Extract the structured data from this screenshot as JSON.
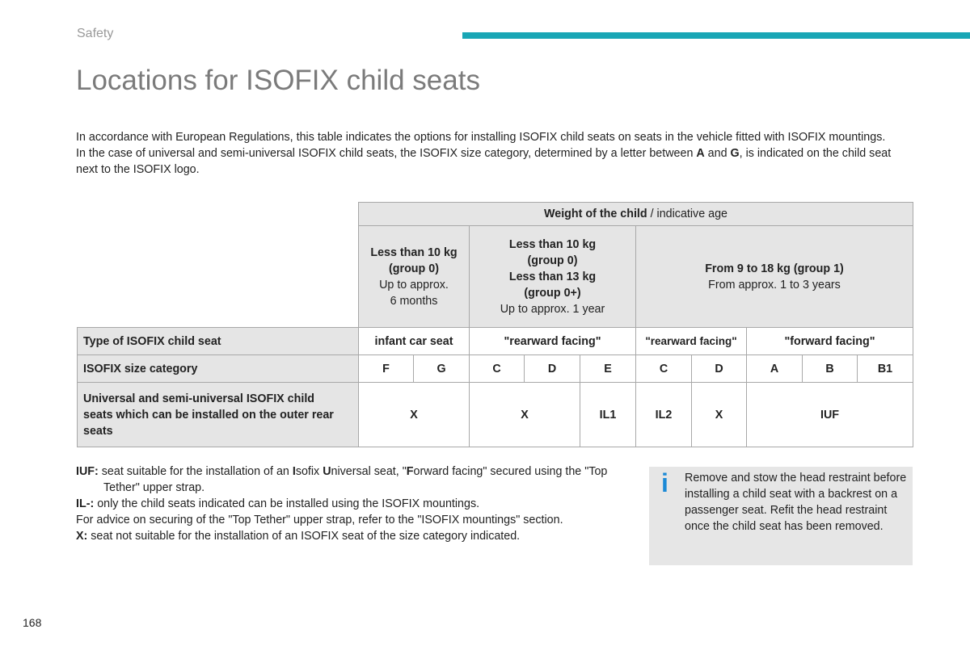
{
  "header": {
    "section": "Safety",
    "title": "Locations for ISOFIX child seats"
  },
  "intro": [
    [
      "In accordance with European Regulations, this table indicates the options for installing ISOFIX child seats on seats in the vehicle fitted with ISOFIX mountings."
    ],
    [
      "In the case of universal and semi-universal ISOFIX child seats, the ISOFIX size category, determined by a letter between ",
      "A",
      " and ",
      "G",
      ", is indicated on the child seat next to the ISOFIX logo."
    ]
  ],
  "table": {
    "weight_header": {
      "bold": "Weight of the child",
      "rest": " / indicative age"
    },
    "groups": [
      {
        "bold": [
          "Less than 10 kg",
          "(group 0)"
        ],
        "note": [
          "Up to approx.",
          "6 months"
        ]
      },
      {
        "bold": [
          "Less than 10 kg",
          "(group 0)",
          "Less than 13 kg",
          "(group 0+)"
        ],
        "note": [
          "Up to approx. 1 year"
        ]
      },
      {
        "bold": [
          "From 9 to 18 kg (group 1)"
        ],
        "note": [
          "From approx. 1 to 3 years"
        ]
      }
    ],
    "rows": [
      {
        "label": "Type of ISOFIX child seat",
        "cells": [
          "infant car seat",
          "\"rearward facing\"",
          "\"rearward facing\"",
          "\"forward facing\""
        ]
      },
      {
        "label": "ISOFIX size category",
        "cells": [
          "F",
          "G",
          "C",
          "D",
          "E",
          "C",
          "D",
          "A",
          "B",
          "B1"
        ]
      },
      {
        "label": "Universal and semi-universal ISOFIX child seats which can be installed on the outer rear seats",
        "cells": [
          "X",
          "X",
          "IL1",
          "IL2",
          "X",
          "IUF"
        ]
      }
    ]
  },
  "notes": [
    {
      "key": "IUF:",
      "parts": [
        " seat suitable for the installation of an ",
        "I",
        "sofix ",
        "U",
        "niversal seat, \"",
        "F",
        "orward facing\" secured using the \"Top Tether\" upper strap."
      ]
    },
    {
      "key": "IL-:",
      "parts": [
        " only the child seats indicated can be installed using the ISOFIX mountings."
      ]
    },
    {
      "key": "",
      "parts": [
        "For advice on securing of the \"Top Tether\" upper strap, refer to the \"ISOFIX mountings\" section."
      ]
    },
    {
      "key": "X:",
      "parts": [
        " seat not suitable for the installation of an ISOFIX seat of the size category indicated."
      ]
    }
  ],
  "info": {
    "icon": "i",
    "text": "Remove and stow the head restraint before installing a child seat with a backrest on a passenger seat. Refit the head restraint once the child seat has been removed."
  },
  "page_number": "168"
}
